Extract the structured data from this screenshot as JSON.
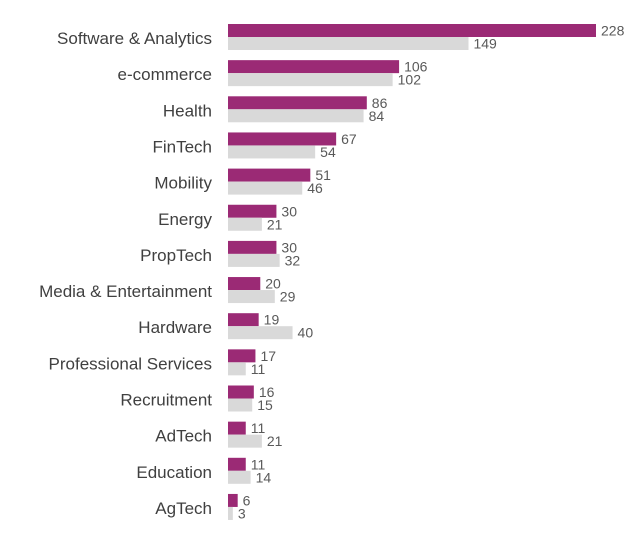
{
  "chart_data": {
    "type": "bar",
    "orientation": "horizontal",
    "title": "",
    "xlabel": "",
    "ylabel": "",
    "grid": false,
    "legend": "none",
    "xlim": [
      0,
      228
    ],
    "categories": [
      "Software & Analytics",
      "e-commerce",
      "Health",
      "FinTech",
      "Mobility",
      "Energy",
      "PropTech",
      "Media & Entertainment",
      "Hardware",
      "Professional Services",
      "Recruitment",
      "AdTech",
      "Education",
      "AgTech"
    ],
    "series": [
      {
        "name": "Series 1",
        "color": "#9b2a75",
        "values": [
          228,
          106,
          86,
          67,
          51,
          30,
          30,
          20,
          19,
          17,
          16,
          11,
          11,
          6
        ]
      },
      {
        "name": "Series 2",
        "color": "#d9d9d9",
        "values": [
          149,
          102,
          84,
          54,
          46,
          21,
          32,
          29,
          40,
          11,
          15,
          21,
          14,
          3
        ]
      }
    ],
    "label_color": "#595959",
    "category_color": "#404040"
  }
}
